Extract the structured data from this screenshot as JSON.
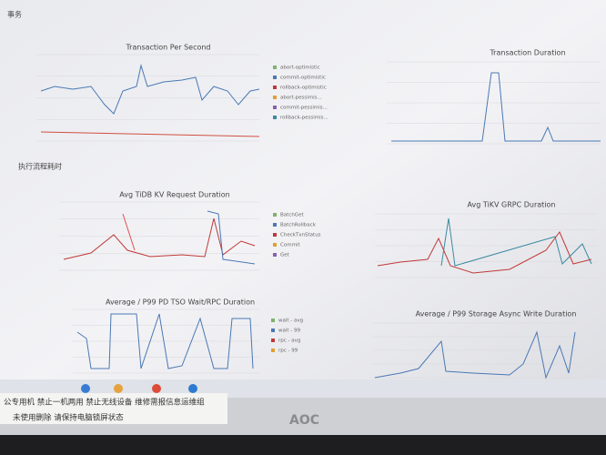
{
  "header": {
    "section1": "事务",
    "section2": "执行流程耗时"
  },
  "panels": [
    {
      "title": "Transaction Per Second",
      "legend": [
        "abort-optimistic",
        "commit-optimistic",
        "rollback-optimistic",
        "abort-pessimis...",
        "commit-pessimis...",
        "rollback-pessimis..."
      ]
    },
    {
      "title": "Transaction Duration"
    },
    {
      "title": "Avg TiDB KV Request Duration",
      "legend": [
        "BatchGet",
        "BatchRollback",
        "CheckTxnStatus",
        "Commit",
        "Get"
      ]
    },
    {
      "title": "Avg TiKV GRPC Duration"
    },
    {
      "title": "Average / P99 PD TSO Wait/RPC Duration",
      "legend": [
        "wait - avg",
        "wait - 99",
        "rpc - avg",
        "rpc - 99"
      ]
    },
    {
      "title": "Average / P99 Storage Async Write Duration"
    }
  ],
  "sticker": {
    "line1": "公专用机 禁止一机两用 禁止无线设备 维修需报信息运维组",
    "line2": "未使用删除 请保持电脑锁屏状态"
  },
  "monitor": {
    "brand": "AOC"
  }
}
